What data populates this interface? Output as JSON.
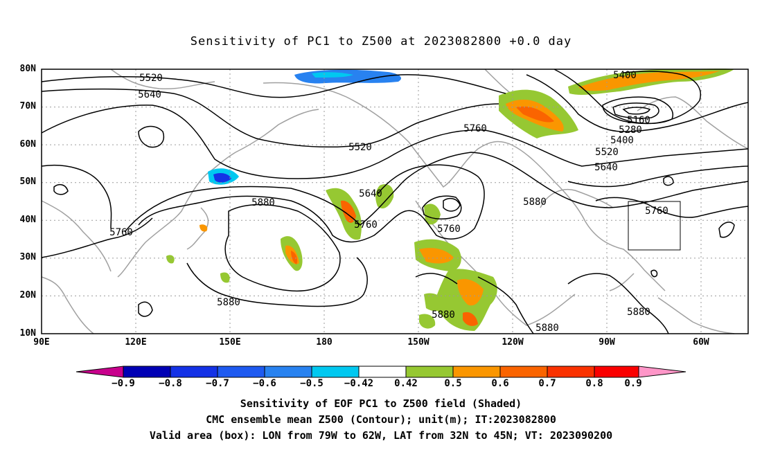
{
  "title": "Sensitivity of PC1 to Z500 at 2023082800 +0.0 day",
  "map": {
    "lat_labels": [
      "80N",
      "70N",
      "60N",
      "50N",
      "40N",
      "30N",
      "20N",
      "10N"
    ],
    "lon_labels": [
      "90E",
      "120E",
      "150E",
      "180",
      "150W",
      "120W",
      "90W",
      "60W"
    ],
    "contour_labels": [
      {
        "text": "5520"
      },
      {
        "text": "5640"
      },
      {
        "text": "5400"
      },
      {
        "text": "5760"
      },
      {
        "text": "5160"
      },
      {
        "text": "5280"
      },
      {
        "text": "5400"
      },
      {
        "text": "5520"
      },
      {
        "text": "5520"
      },
      {
        "text": "5640"
      },
      {
        "text": "5640"
      },
      {
        "text": "5760"
      },
      {
        "text": "5880"
      },
      {
        "text": "5880"
      },
      {
        "text": "5760"
      },
      {
        "text": "5760"
      },
      {
        "text": "5760"
      },
      {
        "text": "5880"
      },
      {
        "text": "5880"
      },
      {
        "text": "5880"
      },
      {
        "text": "5880"
      }
    ],
    "colors": {
      "ocean": "#ffffff",
      "coast": "#a0a0a0",
      "contour": "#000000",
      "grid": "#9a9a9a"
    }
  },
  "colorbar": {
    "labels": [
      "−0.9",
      "−0.8",
      "−0.7",
      "−0.6",
      "−0.5",
      "−0.42",
      "0.42",
      "0.5",
      "0.6",
      "0.7",
      "0.8",
      "0.9"
    ],
    "colors": [
      "#c8008c",
      "#0000b4",
      "#1432e6",
      "#1e5af0",
      "#2882f0",
      "#00c8f0",
      "#ffffff",
      "#96c832",
      "#fa9600",
      "#fa6400",
      "#fa3200",
      "#fa0000",
      "#ff96c8"
    ]
  },
  "captions": [
    "Sensitivity of EOF PC1 to Z500 field (Shaded)",
    "CMC ensemble mean Z500 (Contour); unit(m); IT:2023082800",
    "Valid area (box): LON from 79W to 62W, LAT from 32N to 45N; VT: 2023090200"
  ]
}
